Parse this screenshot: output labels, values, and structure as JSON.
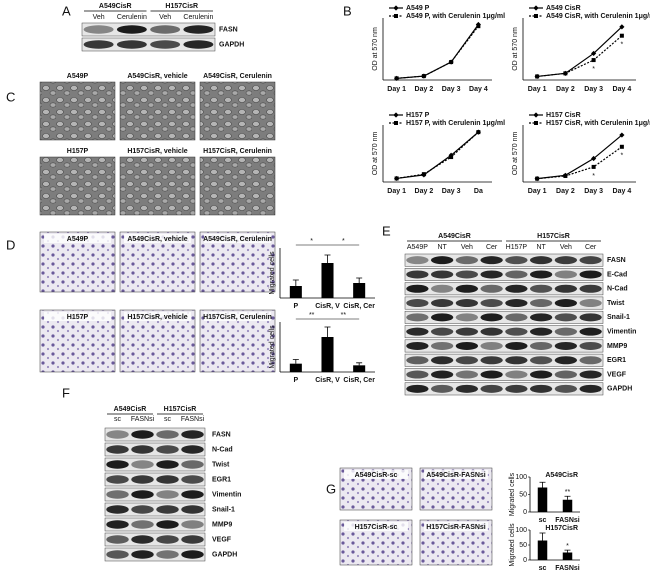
{
  "panel_letters": [
    "A",
    "B",
    "C",
    "D",
    "E",
    "F",
    "G"
  ],
  "panel_a": {
    "groups": [
      "A549CisR",
      "H157CisR"
    ],
    "lanes": [
      "Veh",
      "Cerulenin",
      "Veh",
      "Cerulenin"
    ],
    "proteins": [
      "FASN",
      "GAPDH"
    ]
  },
  "panel_c": {
    "images": [
      "A549P",
      "A549CisR, vehicle",
      "A549CisR, Cerulenin",
      "H157P",
      "H157CisR, vehicle",
      "H157CisR, Cerulenin"
    ]
  },
  "panel_d": {
    "images": [
      "A549P",
      "A549CisR, vehicle",
      "A549CisR, Cerulenin",
      "H157P",
      "H157CisR, vehicle",
      "H157CisR, Cerulenin"
    ]
  },
  "panel_e": {
    "groups": [
      "A549CisR",
      "H157CisR"
    ],
    "lanes": [
      "A549P",
      "NT",
      "Veh",
      "Cer",
      "H157P",
      "NT",
      "Veh",
      "Cer"
    ],
    "proteins": [
      "FASN",
      "E-Cad",
      "N-Cad",
      "Twist",
      "Snail-1",
      "Vimentin",
      "MMP9",
      "EGR1",
      "VEGF",
      "GAPDH"
    ]
  },
  "panel_f": {
    "groups": [
      "A549CisR",
      "H157CisR"
    ],
    "lanes": [
      "sc",
      "FASNsi",
      "sc",
      "FASNsi"
    ],
    "proteins": [
      "FASN",
      "N-Cad",
      "Twist",
      "EGR1",
      "Vimentin",
      "Snail-1",
      "MMP9",
      "VEGF",
      "GAPDH"
    ]
  },
  "panel_g": {
    "images": [
      "A549CisR-sc",
      "A549CisR-FASNsi",
      "H157CisR-sc",
      "H157CisR-FASNsi"
    ]
  },
  "chart_data": [
    {
      "type": "line",
      "ylabel": "OD at 570 nm",
      "categories": [
        "Day 1",
        "Day 2",
        "Day 3",
        "Day 4"
      ],
      "ylim": [
        0,
        1.9
      ],
      "series": [
        {
          "name": "A549 P",
          "color": "#000000",
          "style": "solid",
          "marker": "diamond",
          "values": [
            0.05,
            0.12,
            0.55,
            1.7
          ]
        },
        {
          "name": "A549 P, with Cerulenin 1μg/ml",
          "color": "#000000",
          "style": "dashed",
          "marker": "square",
          "values": [
            0.05,
            0.12,
            0.55,
            1.65
          ]
        }
      ]
    },
    {
      "type": "line",
      "ylabel": "OD at 570 nm",
      "categories": [
        "Day 1",
        "Day 2",
        "Day 3",
        "Day 4"
      ],
      "ylim": [
        0,
        1.4
      ],
      "series": [
        {
          "name": "A549 CisR",
          "color": "#000000",
          "style": "solid",
          "marker": "diamond",
          "values": [
            0.08,
            0.15,
            0.6,
            1.2
          ]
        },
        {
          "name": "A549 CisR, with Cerulenin 1μg/ml",
          "color": "#000000",
          "style": "dashed",
          "marker": "square",
          "values": [
            0.08,
            0.15,
            0.45,
            1.0
          ]
        }
      ],
      "significance": [
        null,
        null,
        "*",
        "*"
      ]
    },
    {
      "type": "line",
      "ylabel": "OD at 570 nm",
      "categories": [
        "Day 1",
        "Day 2",
        "Day 3",
        "Da"
      ],
      "ylim": [
        0,
        1.6
      ],
      "series": [
        {
          "name": "H157 P",
          "color": "#000000",
          "style": "solid",
          "marker": "diamond",
          "values": [
            0.1,
            0.2,
            0.75,
            1.4
          ]
        },
        {
          "name": "H157 P, with Cerulenin 1μg/ml",
          "color": "#000000",
          "style": "dashed",
          "marker": "square",
          "values": [
            0.1,
            0.22,
            0.7,
            1.4
          ]
        }
      ]
    },
    {
      "type": "line",
      "ylabel": "OD at 570 nm",
      "categories": [
        "Day 1",
        "Day 2",
        "Day 3",
        "Day 4"
      ],
      "ylim": [
        0,
        1.7
      ],
      "series": [
        {
          "name": "H157 CisR",
          "color": "#000000",
          "style": "solid",
          "marker": "diamond",
          "values": [
            0.1,
            0.2,
            0.7,
            1.4
          ]
        },
        {
          "name": "H157 CisR, with Cerulenin 1μg/ml",
          "color": "#000000",
          "style": "dashed",
          "marker": "square",
          "values": [
            0.1,
            0.18,
            0.45,
            1.05
          ]
        }
      ],
      "significance": [
        null,
        null,
        "*",
        "*"
      ]
    },
    {
      "type": "bar",
      "ylabel": "Migrated cells",
      "categories": [
        "P",
        "CisR, V",
        "CisR, Cer"
      ],
      "values": [
        12,
        35,
        15
      ],
      "errors": [
        6,
        8,
        5
      ],
      "color": "#000000",
      "ylim": [
        0,
        50
      ],
      "significance": [
        "*",
        "*"
      ]
    },
    {
      "type": "bar",
      "ylabel": "Migrated cells",
      "categories": [
        "P",
        "CisR, V",
        "CisR, Cer"
      ],
      "values": [
        10,
        42,
        8
      ],
      "errors": [
        5,
        12,
        3
      ],
      "color": "#000000",
      "ylim": [
        0,
        60
      ],
      "significance": [
        "**",
        "**"
      ]
    },
    {
      "type": "bar",
      "title": "A549CisR",
      "ylabel": "Migrated cells",
      "categories": [
        "sc",
        "FASNsi"
      ],
      "values": [
        70,
        35
      ],
      "errors": [
        15,
        10
      ],
      "color": "#000000",
      "ylim": [
        0,
        100
      ],
      "yticks": [
        0,
        50,
        100
      ],
      "significance": [
        null,
        "**"
      ]
    },
    {
      "type": "bar",
      "title": "H157CisR",
      "ylabel": "Migrated cells",
      "categories": [
        "sc",
        "FASNsi"
      ],
      "values": [
        65,
        25
      ],
      "errors": [
        25,
        8
      ],
      "color": "#000000",
      "ylim": [
        0,
        100
      ],
      "yticks": [
        0,
        50,
        100
      ],
      "significance": [
        null,
        "*"
      ]
    }
  ]
}
